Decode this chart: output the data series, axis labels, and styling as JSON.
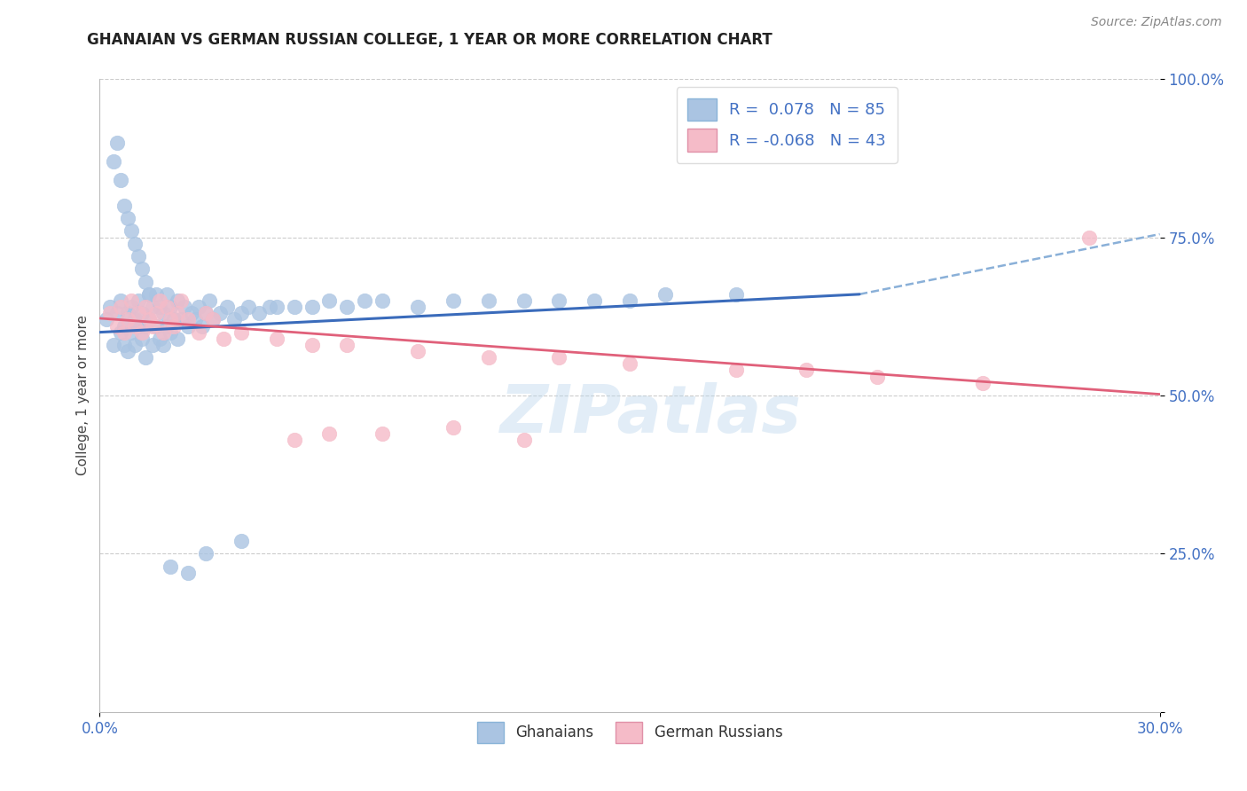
{
  "title": "GHANAIAN VS GERMAN RUSSIAN COLLEGE, 1 YEAR OR MORE CORRELATION CHART",
  "source_text": "Source: ZipAtlas.com",
  "ylabel": "College, 1 year or more",
  "xmin": 0.0,
  "xmax": 0.3,
  "ymin": 0.0,
  "ymax": 1.0,
  "ytick_vals": [
    0.0,
    0.25,
    0.5,
    0.75,
    1.0
  ],
  "ytick_labels": [
    "",
    "25.0%",
    "50.0%",
    "75.0%",
    "100.0%"
  ],
  "xtick_vals": [
    0.0,
    0.3
  ],
  "xtick_labels": [
    "0.0%",
    "30.0%"
  ],
  "ghanaian_R": 0.078,
  "ghanaian_N": 85,
  "german_russian_R": -0.068,
  "german_russian_N": 43,
  "dot_color_ghanaian": "#aac4e2",
  "dot_color_german_russian": "#f5bbc8",
  "line_color_ghanaian": "#3a6bbb",
  "line_color_german_russian": "#e0607a",
  "dashed_line_color": "#8ab0d8",
  "background_color": "#ffffff",
  "watermark_text": "ZIPatlas",
  "legend_label_ghanaian": "Ghanaians",
  "legend_label_german_russian": "German Russians",
  "tick_color": "#4472c4",
  "title_color": "#222222",
  "ylabel_color": "#444444",
  "source_color": "#888888",
  "grid_color": "#cccccc",
  "gh_x": [
    0.002,
    0.003,
    0.004,
    0.005,
    0.006,
    0.006,
    0.007,
    0.007,
    0.008,
    0.008,
    0.009,
    0.009,
    0.01,
    0.01,
    0.011,
    0.011,
    0.012,
    0.012,
    0.013,
    0.013,
    0.014,
    0.014,
    0.015,
    0.015,
    0.016,
    0.016,
    0.017,
    0.017,
    0.018,
    0.018,
    0.019,
    0.019,
    0.02,
    0.02,
    0.021,
    0.022,
    0.022,
    0.023,
    0.024,
    0.025,
    0.026,
    0.027,
    0.028,
    0.029,
    0.03,
    0.031,
    0.032,
    0.034,
    0.036,
    0.038,
    0.04,
    0.042,
    0.045,
    0.048,
    0.05,
    0.055,
    0.06,
    0.065,
    0.07,
    0.075,
    0.08,
    0.09,
    0.1,
    0.11,
    0.12,
    0.13,
    0.14,
    0.15,
    0.16,
    0.18,
    0.004,
    0.005,
    0.006,
    0.007,
    0.008,
    0.009,
    0.01,
    0.011,
    0.012,
    0.013,
    0.014,
    0.03,
    0.04,
    0.02,
    0.025
  ],
  "gh_y": [
    0.62,
    0.64,
    0.58,
    0.63,
    0.6,
    0.65,
    0.58,
    0.61,
    0.57,
    0.63,
    0.6,
    0.64,
    0.58,
    0.62,
    0.61,
    0.65,
    0.59,
    0.63,
    0.61,
    0.56,
    0.62,
    0.66,
    0.58,
    0.64,
    0.61,
    0.66,
    0.59,
    0.64,
    0.58,
    0.63,
    0.61,
    0.66,
    0.6,
    0.64,
    0.62,
    0.65,
    0.59,
    0.62,
    0.64,
    0.61,
    0.63,
    0.62,
    0.64,
    0.61,
    0.63,
    0.65,
    0.62,
    0.63,
    0.64,
    0.62,
    0.63,
    0.64,
    0.63,
    0.64,
    0.64,
    0.64,
    0.64,
    0.65,
    0.64,
    0.65,
    0.65,
    0.64,
    0.65,
    0.65,
    0.65,
    0.65,
    0.65,
    0.65,
    0.66,
    0.66,
    0.87,
    0.9,
    0.84,
    0.8,
    0.78,
    0.76,
    0.74,
    0.72,
    0.7,
    0.68,
    0.66,
    0.25,
    0.27,
    0.23,
    0.22
  ],
  "gr_x": [
    0.003,
    0.005,
    0.006,
    0.007,
    0.008,
    0.009,
    0.01,
    0.011,
    0.012,
    0.013,
    0.014,
    0.015,
    0.016,
    0.017,
    0.018,
    0.019,
    0.02,
    0.021,
    0.022,
    0.023,
    0.025,
    0.028,
    0.03,
    0.032,
    0.035,
    0.04,
    0.05,
    0.06,
    0.07,
    0.09,
    0.11,
    0.13,
    0.15,
    0.18,
    0.2,
    0.22,
    0.25,
    0.055,
    0.065,
    0.08,
    0.1,
    0.12,
    0.28
  ],
  "gr_y": [
    0.63,
    0.61,
    0.64,
    0.6,
    0.62,
    0.65,
    0.61,
    0.63,
    0.6,
    0.64,
    0.62,
    0.61,
    0.63,
    0.65,
    0.6,
    0.64,
    0.62,
    0.61,
    0.63,
    0.65,
    0.62,
    0.6,
    0.63,
    0.62,
    0.59,
    0.6,
    0.59,
    0.58,
    0.58,
    0.57,
    0.56,
    0.56,
    0.55,
    0.54,
    0.54,
    0.53,
    0.52,
    0.43,
    0.44,
    0.44,
    0.45,
    0.43,
    0.75
  ],
  "gh_line_x": [
    0.0,
    0.215
  ],
  "gh_line_y": [
    0.6,
    0.66
  ],
  "gr_line_x": [
    0.0,
    0.3
  ],
  "gr_line_y": [
    0.622,
    0.502
  ],
  "dashed_line_x": [
    0.215,
    0.3
  ],
  "dashed_line_y": [
    0.66,
    0.755
  ]
}
